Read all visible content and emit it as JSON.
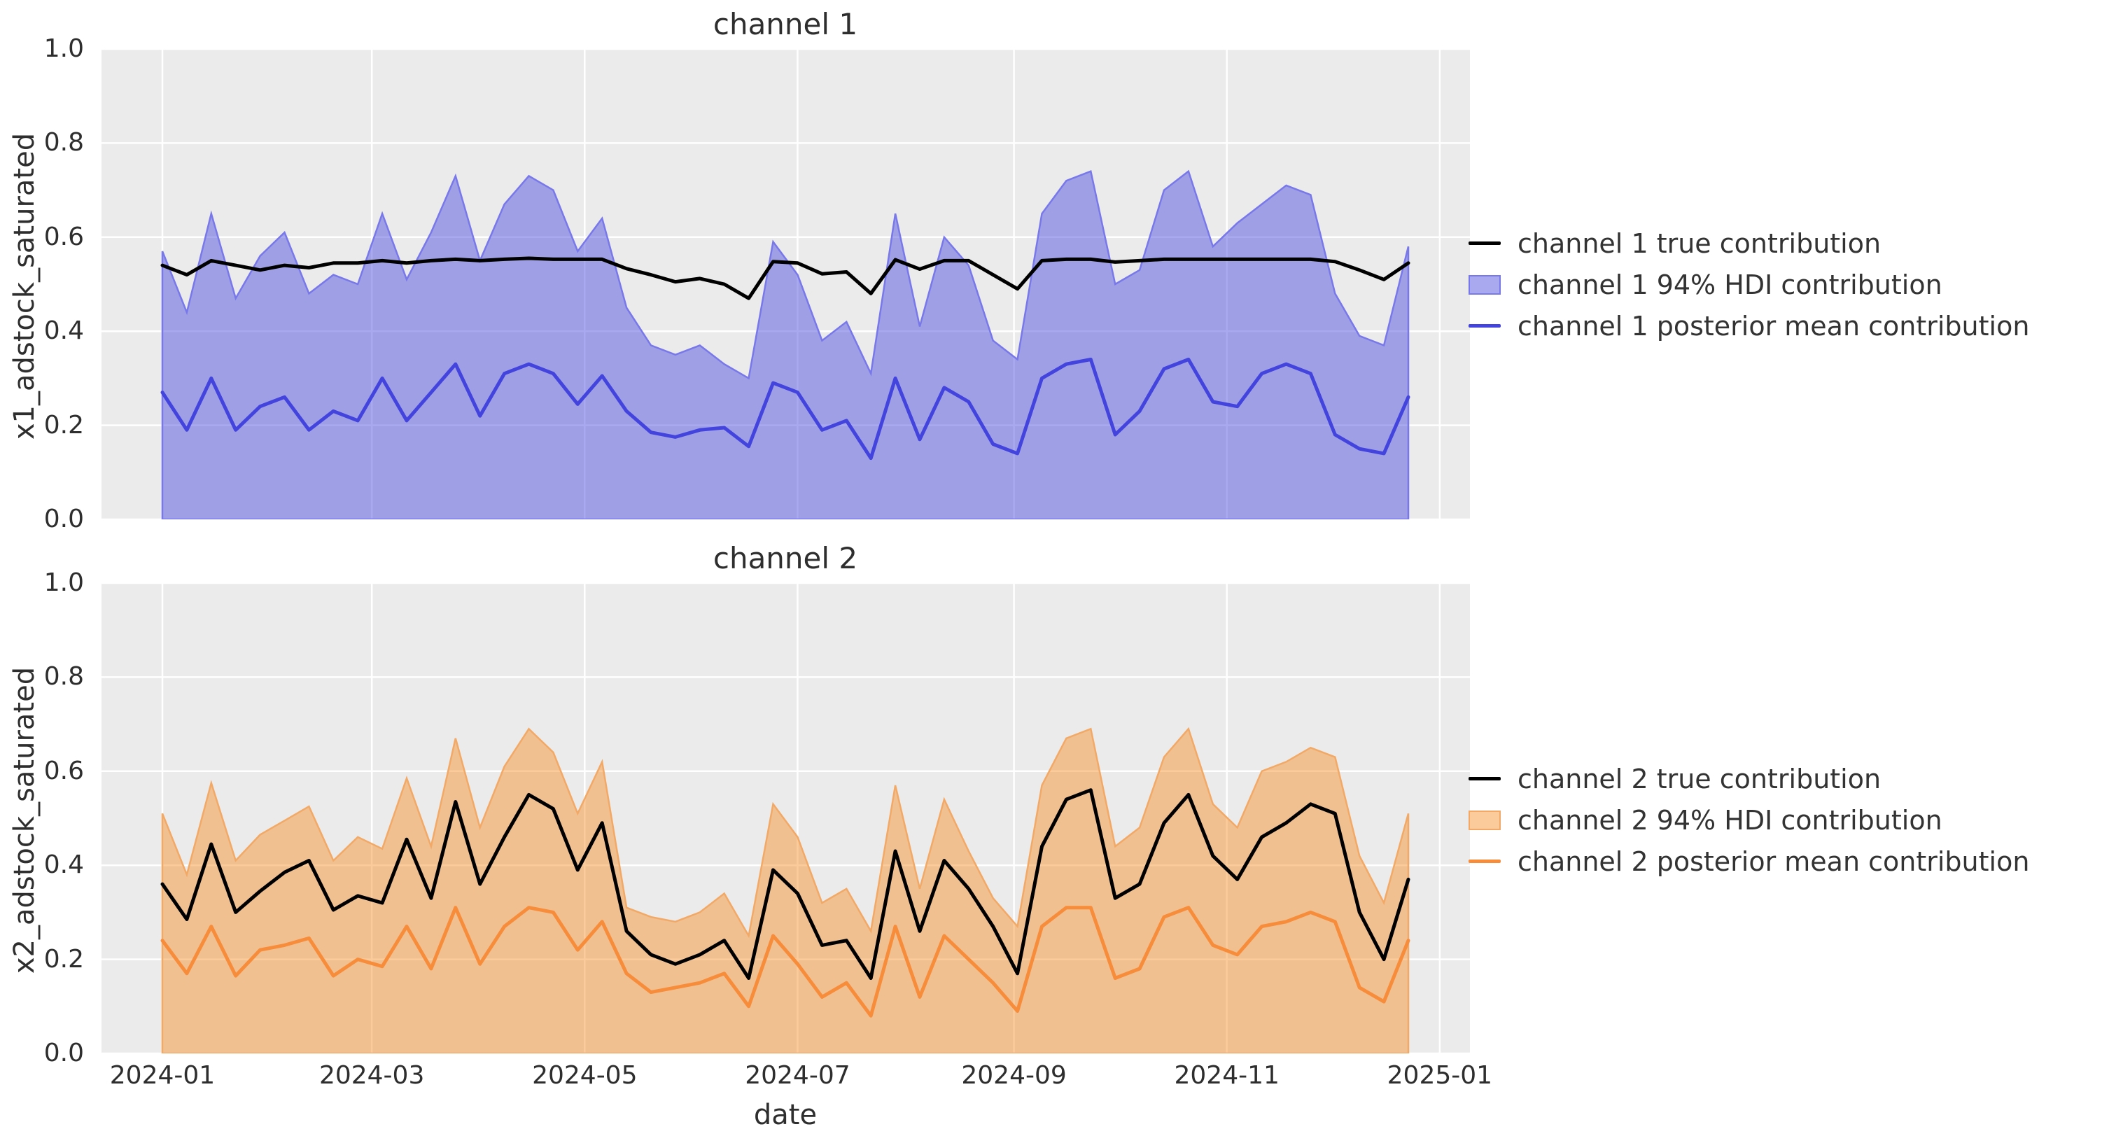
{
  "figure": {
    "xlabel": "date",
    "x_tick_labels": [
      "2024-01",
      "2024-03",
      "2024-05",
      "2024-07",
      "2024-09",
      "2024-11",
      "2025-01"
    ],
    "x_tick_days": [
      0,
      60,
      121,
      182,
      244,
      305,
      366
    ],
    "y_tick_labels": [
      "0.0",
      "0.2",
      "0.4",
      "0.6",
      "0.8",
      "1.0"
    ],
    "background_color": "#ebebeb",
    "grid_color": "#ffffff"
  },
  "chart_data": [
    {
      "type": "line",
      "title": "channel 1",
      "ylabel": "x1_adstock_saturated",
      "xlabel": "date",
      "ylim": [
        0.0,
        1.0
      ],
      "x_unit": "weekly points from 2024-01-01, 52 points",
      "x_days": [
        0,
        7,
        14,
        21,
        28,
        35,
        42,
        49,
        56,
        63,
        70,
        77,
        84,
        91,
        98,
        105,
        112,
        119,
        126,
        133,
        140,
        147,
        154,
        161,
        168,
        175,
        182,
        189,
        196,
        203,
        210,
        217,
        224,
        231,
        238,
        245,
        252,
        259,
        266,
        273,
        280,
        287,
        294,
        301,
        308,
        315,
        322,
        329,
        336,
        343,
        350,
        357
      ],
      "legend_position": "right",
      "grid": true,
      "series": [
        {
          "name": "channel 1 true contribution",
          "kind": "line",
          "color": "#000000",
          "values": [
            0.54,
            0.52,
            0.55,
            0.54,
            0.53,
            0.54,
            0.535,
            0.545,
            0.545,
            0.55,
            0.545,
            0.55,
            0.553,
            0.55,
            0.553,
            0.555,
            0.553,
            0.553,
            0.553,
            0.533,
            0.52,
            0.505,
            0.512,
            0.5,
            0.47,
            0.548,
            0.545,
            0.522,
            0.526,
            0.48,
            0.552,
            0.532,
            0.55,
            0.55,
            0.52,
            0.49,
            0.55,
            0.553,
            0.553,
            0.547,
            0.55,
            0.553,
            0.553,
            0.553,
            0.553,
            0.553,
            0.553,
            0.553,
            0.548,
            0.53,
            0.51,
            0.545
          ]
        },
        {
          "name": "channel 1 94% HDI contribution",
          "kind": "band",
          "color_fill": "rgba(90,90,226,0.52)",
          "color_edge": "#7878ea",
          "lower": 0.0,
          "upper": [
            0.57,
            0.44,
            0.65,
            0.47,
            0.56,
            0.61,
            0.48,
            0.52,
            0.5,
            0.65,
            0.51,
            0.61,
            0.73,
            0.55,
            0.67,
            0.73,
            0.7,
            0.57,
            0.64,
            0.45,
            0.37,
            0.35,
            0.37,
            0.33,
            0.3,
            0.59,
            0.52,
            0.38,
            0.42,
            0.31,
            0.65,
            0.41,
            0.6,
            0.54,
            0.38,
            0.34,
            0.65,
            0.72,
            0.74,
            0.5,
            0.53,
            0.7,
            0.74,
            0.58,
            0.63,
            0.67,
            0.71,
            0.69,
            0.48,
            0.39,
            0.37,
            0.58
          ]
        },
        {
          "name": "channel 1 posterior mean contribution",
          "kind": "line",
          "color": "#4343de",
          "values": [
            0.27,
            0.19,
            0.3,
            0.19,
            0.24,
            0.26,
            0.19,
            0.23,
            0.21,
            0.3,
            0.21,
            0.27,
            0.33,
            0.22,
            0.31,
            0.33,
            0.31,
            0.245,
            0.305,
            0.23,
            0.185,
            0.175,
            0.19,
            0.195,
            0.155,
            0.29,
            0.27,
            0.19,
            0.21,
            0.13,
            0.3,
            0.17,
            0.28,
            0.25,
            0.16,
            0.14,
            0.3,
            0.33,
            0.34,
            0.18,
            0.23,
            0.32,
            0.34,
            0.25,
            0.24,
            0.31,
            0.33,
            0.31,
            0.18,
            0.15,
            0.14,
            0.26
          ]
        }
      ]
    },
    {
      "type": "line",
      "title": "channel 2",
      "ylabel": "x2_adstock_saturated",
      "xlabel": "date",
      "ylim": [
        0.0,
        1.0
      ],
      "x_unit": "weekly points from 2024-01-01, 52 points",
      "x_days": [
        0,
        7,
        14,
        21,
        28,
        35,
        42,
        49,
        56,
        63,
        70,
        77,
        84,
        91,
        98,
        105,
        112,
        119,
        126,
        133,
        140,
        147,
        154,
        161,
        168,
        175,
        182,
        189,
        196,
        203,
        210,
        217,
        224,
        231,
        238,
        245,
        252,
        259,
        266,
        273,
        280,
        287,
        294,
        301,
        308,
        315,
        322,
        329,
        336,
        343,
        350,
        357
      ],
      "legend_position": "right",
      "grid": true,
      "series": [
        {
          "name": "channel 2 true contribution",
          "kind": "line",
          "color": "#000000",
          "values": [
            0.36,
            0.285,
            0.445,
            0.3,
            0.345,
            0.385,
            0.41,
            0.305,
            0.335,
            0.32,
            0.455,
            0.33,
            0.535,
            0.36,
            0.46,
            0.55,
            0.52,
            0.39,
            0.49,
            0.26,
            0.21,
            0.19,
            0.21,
            0.24,
            0.16,
            0.39,
            0.34,
            0.23,
            0.24,
            0.16,
            0.43,
            0.26,
            0.41,
            0.35,
            0.27,
            0.17,
            0.44,
            0.54,
            0.56,
            0.33,
            0.36,
            0.49,
            0.55,
            0.42,
            0.37,
            0.46,
            0.49,
            0.53,
            0.51,
            0.3,
            0.2,
            0.37
          ]
        },
        {
          "name": "channel 2 94% HDI contribution",
          "kind": "band",
          "color_fill": "rgba(246,140,35,0.45)",
          "color_edge": "#f3a966",
          "lower": 0.0,
          "upper": [
            0.51,
            0.38,
            0.575,
            0.41,
            0.465,
            0.495,
            0.525,
            0.41,
            0.46,
            0.435,
            0.585,
            0.44,
            0.67,
            0.48,
            0.61,
            0.69,
            0.64,
            0.51,
            0.62,
            0.31,
            0.29,
            0.28,
            0.3,
            0.34,
            0.25,
            0.53,
            0.46,
            0.32,
            0.35,
            0.26,
            0.57,
            0.35,
            0.54,
            0.43,
            0.33,
            0.27,
            0.57,
            0.67,
            0.69,
            0.44,
            0.48,
            0.63,
            0.69,
            0.53,
            0.48,
            0.6,
            0.62,
            0.65,
            0.63,
            0.42,
            0.32,
            0.51
          ]
        },
        {
          "name": "channel 2 posterior mean contribution",
          "kind": "line",
          "color": "#f78c3a",
          "values": [
            0.24,
            0.17,
            0.27,
            0.165,
            0.22,
            0.23,
            0.245,
            0.165,
            0.2,
            0.185,
            0.27,
            0.18,
            0.31,
            0.19,
            0.27,
            0.31,
            0.3,
            0.22,
            0.28,
            0.17,
            0.13,
            0.14,
            0.15,
            0.17,
            0.1,
            0.25,
            0.19,
            0.12,
            0.15,
            0.08,
            0.27,
            0.12,
            0.25,
            0.2,
            0.15,
            0.09,
            0.27,
            0.31,
            0.31,
            0.16,
            0.18,
            0.29,
            0.31,
            0.23,
            0.21,
            0.27,
            0.28,
            0.3,
            0.28,
            0.14,
            0.11,
            0.24
          ]
        }
      ]
    }
  ]
}
